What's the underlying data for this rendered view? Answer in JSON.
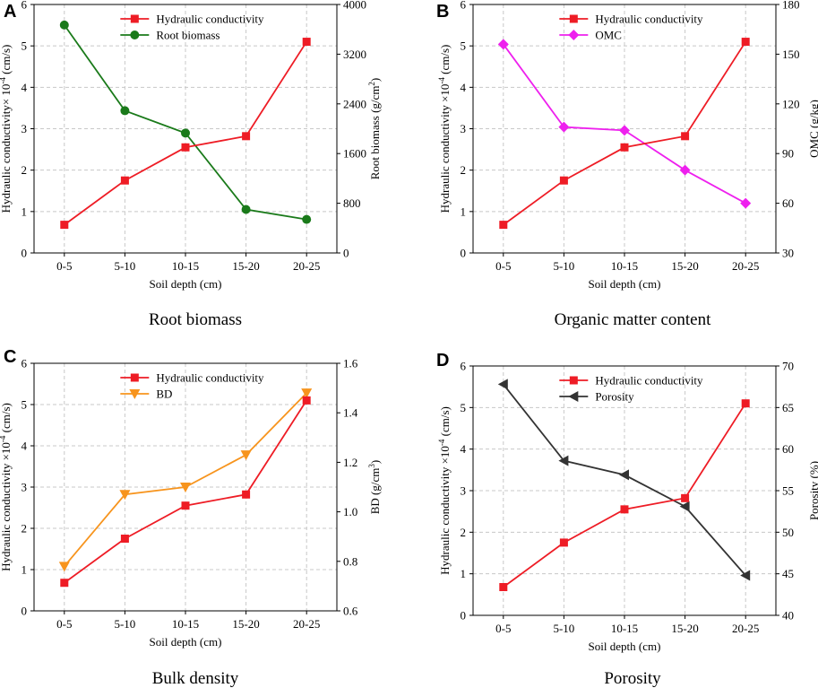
{
  "chart_data": [
    {
      "type": "line",
      "panel_label": "A",
      "caption": "Root biomass",
      "categories": [
        "0-5",
        "5-10",
        "10-15",
        "15-20",
        "20-25"
      ],
      "xlabel": "Soil depth (cm)",
      "left_axis": {
        "ylabel_main": "Hydraulic conductivity× 10",
        "ylabel_sup": "-4",
        "ylabel_tail": " (cm/s)",
        "ylim": [
          0,
          6
        ],
        "ticks": [
          "0",
          "1",
          "2",
          "3",
          "4",
          "5",
          "6"
        ]
      },
      "right_axis": {
        "ylabel_main": "Root biomass (g/cm",
        "ylabel_sup": "2",
        "ylabel_tail": ")",
        "ylim": [
          0,
          4000
        ],
        "ticks": [
          "0",
          "800",
          "1600",
          "2400",
          "3200",
          "4000"
        ]
      },
      "series": [
        {
          "name": "Hydraulic conductivity",
          "axis": "left",
          "marker": "square",
          "color": "#ee1c25",
          "values": [
            0.68,
            1.75,
            2.55,
            2.82,
            5.1
          ]
        },
        {
          "name": "Root biomass",
          "axis": "right",
          "marker": "circle",
          "color": "#1a7a1a",
          "values": [
            3670,
            2290,
            1930,
            700,
            540
          ]
        }
      ]
    },
    {
      "type": "line",
      "panel_label": "B",
      "caption": "Organic matter content",
      "categories": [
        "0-5",
        "5-10",
        "10-15",
        "15-20",
        "20-25"
      ],
      "xlabel": "Soil depth (cm)",
      "left_axis": {
        "ylabel_main": "Hydraulic conductivity ×10",
        "ylabel_sup": "-4",
        "ylabel_tail": " (cm/s)",
        "ylim": [
          0,
          6
        ],
        "ticks": [
          "0",
          "1",
          "2",
          "3",
          "4",
          "5",
          "6"
        ]
      },
      "right_axis": {
        "ylabel_main": "OMC (g/kg)",
        "ylabel_sup": "",
        "ylabel_tail": "",
        "ylim": [
          30,
          180
        ],
        "ticks": [
          "30",
          "60",
          "90",
          "120",
          "150",
          "180"
        ]
      },
      "series": [
        {
          "name": "Hydraulic conductivity",
          "axis": "left",
          "marker": "square",
          "color": "#ee1c25",
          "values": [
            0.68,
            1.75,
            2.55,
            2.82,
            5.1
          ]
        },
        {
          "name": "OMC",
          "axis": "right",
          "marker": "diamond",
          "color": "#ee20ee",
          "values": [
            156,
            106,
            104,
            80,
            60
          ]
        }
      ]
    },
    {
      "type": "line",
      "panel_label": "C",
      "caption": "Bulk density",
      "categories": [
        "0-5",
        "5-10",
        "10-15",
        "15-20",
        "20-25"
      ],
      "xlabel": "Soil depth (cm)",
      "left_axis": {
        "ylabel_main": "Hydraulic conductivity ×10",
        "ylabel_sup": "-4",
        "ylabel_tail": " (cm/s)",
        "ylim": [
          0,
          6
        ],
        "ticks": [
          "0",
          "1",
          "2",
          "3",
          "4",
          "5",
          "6"
        ]
      },
      "right_axis": {
        "ylabel_main": "BD (g/cm",
        "ylabel_sup": "3",
        "ylabel_tail": ")",
        "ylim": [
          0.6,
          1.6
        ],
        "ticks": [
          "0.6",
          "0.8",
          "1.0",
          "1.2",
          "1.4",
          "1.6"
        ]
      },
      "series": [
        {
          "name": "Hydraulic conductivity",
          "axis": "left",
          "marker": "square",
          "color": "#ee1c25",
          "values": [
            0.68,
            1.75,
            2.55,
            2.82,
            5.1
          ]
        },
        {
          "name": "BD",
          "axis": "right",
          "marker": "triangle-down",
          "color": "#f7941d",
          "values": [
            0.78,
            1.07,
            1.1,
            1.23,
            1.48
          ]
        }
      ]
    },
    {
      "type": "line",
      "panel_label": "D",
      "caption": "Porosity",
      "categories": [
        "0-5",
        "5-10",
        "10-15",
        "15-20",
        "20-25"
      ],
      "xlabel": "Soil depth (cm)",
      "left_axis": {
        "ylabel_main": "Hydraulic conductivity ×10",
        "ylabel_sup": "-4",
        "ylabel_tail": " (cm/s)",
        "ylim": [
          0,
          6
        ],
        "ticks": [
          "0",
          "1",
          "2",
          "3",
          "4",
          "5",
          "6"
        ]
      },
      "right_axis": {
        "ylabel_main": "Porosity (%)",
        "ylabel_sup": "",
        "ylabel_tail": "",
        "ylim": [
          40,
          70
        ],
        "ticks": [
          "40",
          "45",
          "50",
          "55",
          "60",
          "65",
          "70"
        ]
      },
      "series": [
        {
          "name": "Hydraulic conductivity",
          "axis": "left",
          "marker": "square",
          "color": "#ee1c25",
          "values": [
            0.68,
            1.75,
            2.55,
            2.82,
            5.1
          ]
        },
        {
          "name": "Porosity",
          "axis": "right",
          "marker": "triangle-left",
          "color": "#333333",
          "values": [
            67.8,
            58.6,
            56.9,
            53.1,
            44.8
          ]
        }
      ]
    }
  ]
}
